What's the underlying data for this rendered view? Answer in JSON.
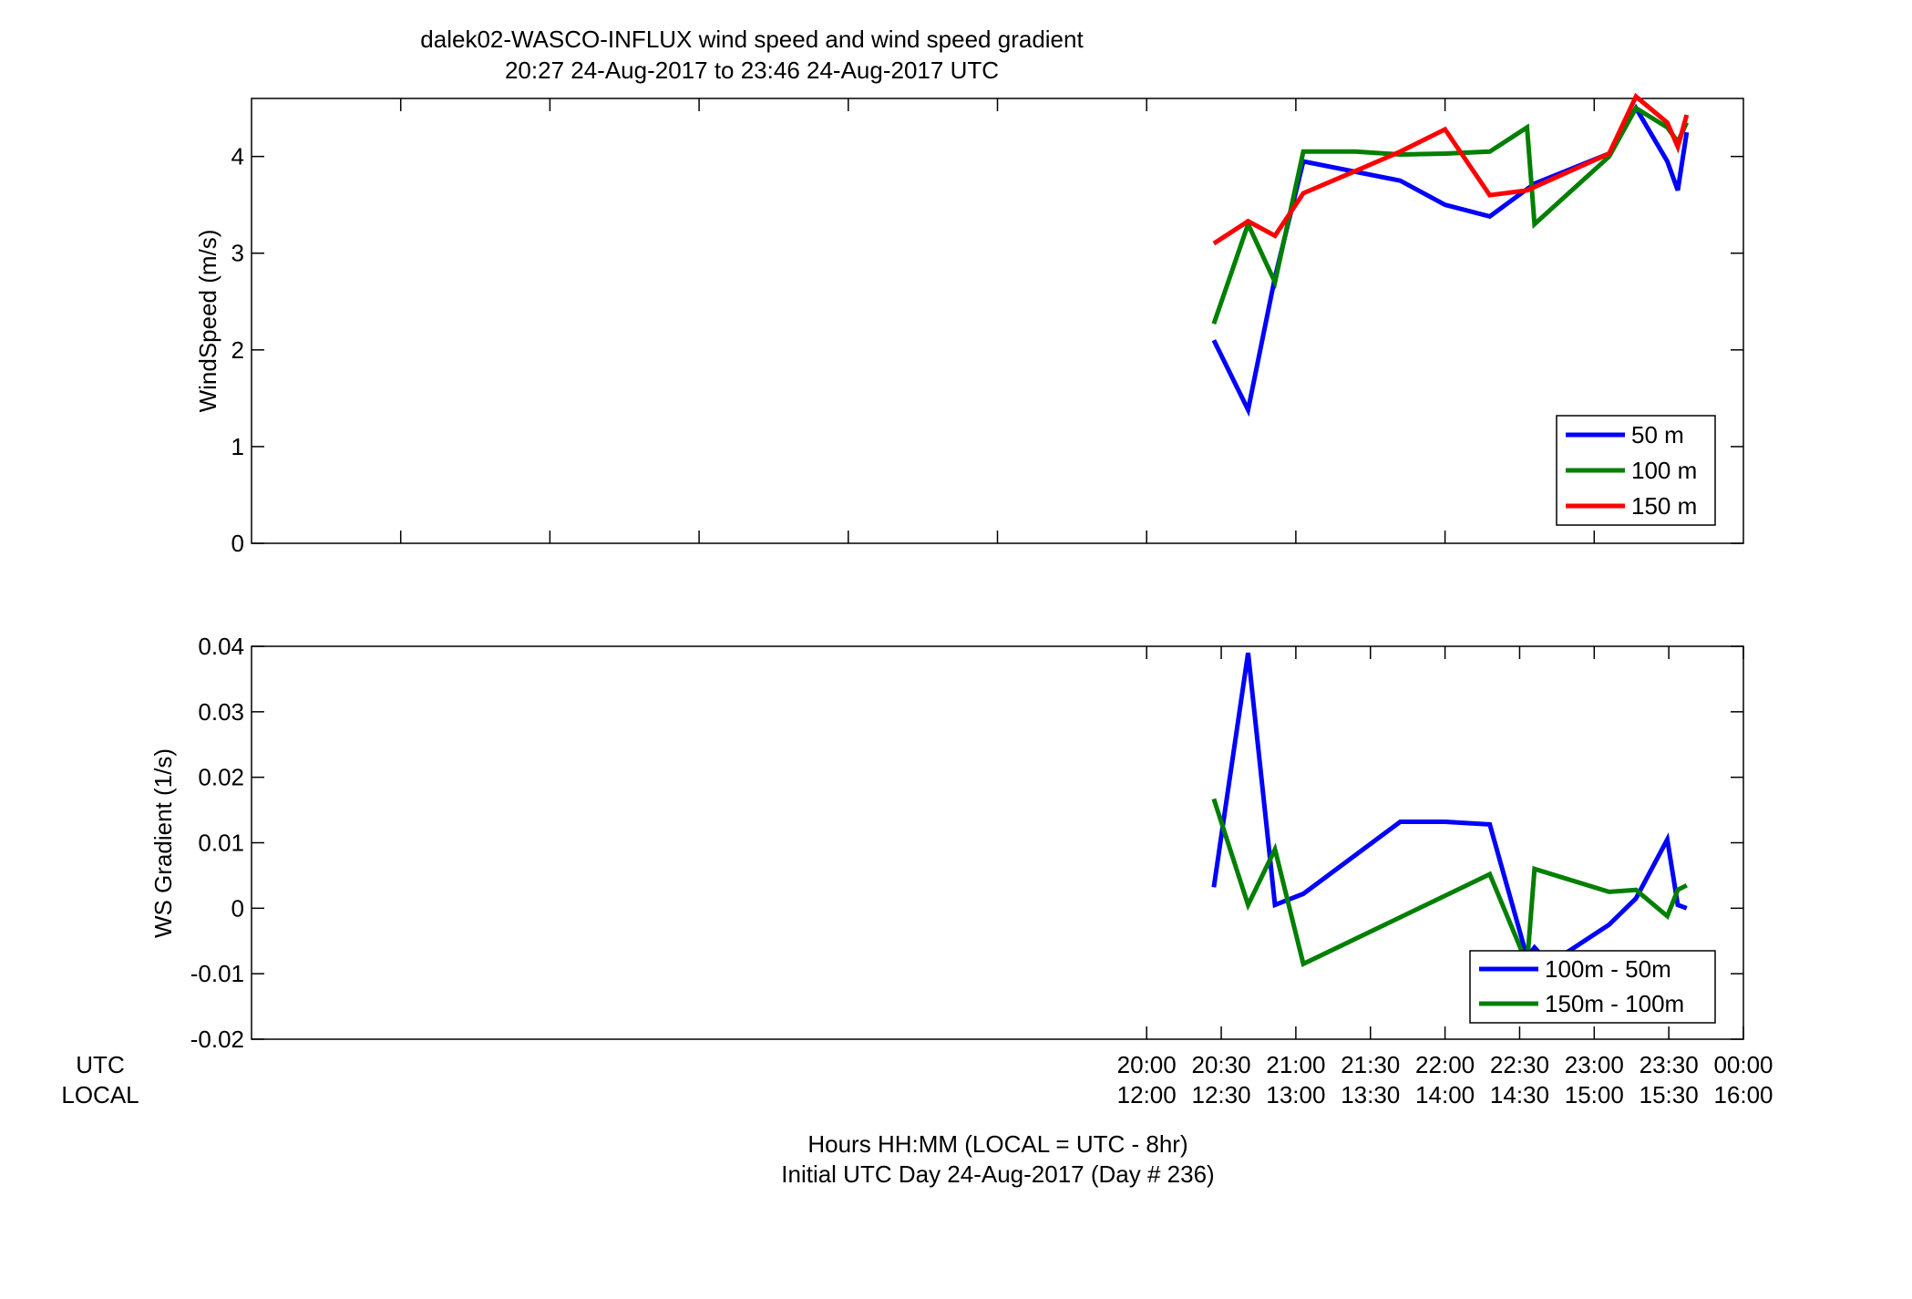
{
  "title": {
    "line1": "dalek02-WASCO-INFLUX  wind speed and wind speed gradient",
    "line2": "20:27 24-Aug-2017 to 23:46 24-Aug-2017  UTC"
  },
  "xaxis": {
    "row_label_utc": "UTC",
    "row_label_local": "LOCAL",
    "ticks_utc": [
      "20:00",
      "20:30",
      "21:00",
      "21:30",
      "22:00",
      "22:30",
      "23:00",
      "23:30",
      "00:00"
    ],
    "ticks_local": [
      "12:00",
      "12:30",
      "13:00",
      "13:30",
      "14:00",
      "14:30",
      "15:00",
      "15:30",
      "16:00"
    ],
    "label_line1": "Hours HH:MM  (LOCAL = UTC - 8hr)",
    "label_line2": "Initial UTC Day 24-Aug-2017 (Day # 236)"
  },
  "colors": {
    "blue": "#0000ff",
    "green": "#007f00",
    "red": "#ff0000"
  },
  "chart_data": [
    {
      "type": "line",
      "ylabel": "WindSpeed (m/s)",
      "ylim": [
        0,
        4.6
      ],
      "yticks": [
        0,
        1,
        2,
        3,
        4
      ],
      "ytick_labels": [
        "0",
        "1",
        "2",
        "3",
        "4"
      ],
      "x_unit": "hours UTC",
      "xlim": [
        14.0,
        24.0
      ],
      "legend": "bottom-right",
      "series": [
        {
          "name": "50 m",
          "color": "#0000ff",
          "x": [
            20.45,
            20.68,
            20.86,
            21.05,
            21.7,
            22.0,
            22.3,
            22.6,
            23.1,
            23.28,
            23.49,
            23.56,
            23.62
          ],
          "y": [
            2.1,
            1.38,
            2.75,
            3.95,
            3.75,
            3.5,
            3.38,
            3.72,
            4.03,
            4.5,
            3.95,
            3.65,
            4.25
          ]
        },
        {
          "name": "100 m",
          "color": "#007f00",
          "x": [
            20.45,
            20.68,
            20.86,
            21.05,
            21.4,
            21.7,
            22.0,
            22.3,
            22.55,
            22.6,
            23.1,
            23.28,
            23.49,
            23.56,
            23.62
          ],
          "y": [
            2.27,
            3.3,
            2.7,
            4.05,
            4.05,
            4.02,
            4.03,
            4.05,
            4.3,
            3.3,
            4.0,
            4.5,
            4.3,
            4.15,
            4.35
          ]
        },
        {
          "name": "150 m",
          "color": "#ff0000",
          "x": [
            20.45,
            20.68,
            20.86,
            21.05,
            21.4,
            21.7,
            22.0,
            22.3,
            22.55,
            23.1,
            23.28,
            23.49,
            23.56,
            23.62
          ],
          "y": [
            3.1,
            3.33,
            3.18,
            3.62,
            3.85,
            4.05,
            4.28,
            3.6,
            3.65,
            4.03,
            4.62,
            4.35,
            4.1,
            4.43
          ]
        }
      ]
    },
    {
      "type": "line",
      "ylabel": "WS Gradient (1/s)",
      "ylim": [
        -0.02,
        0.04
      ],
      "yticks": [
        -0.02,
        -0.01,
        0,
        0.01,
        0.02,
        0.03,
        0.04
      ],
      "ytick_labels": [
        "-0.02",
        "-0.01",
        "0",
        "0.01",
        "0.02",
        "0.03",
        "0.04"
      ],
      "x_unit": "hours UTC",
      "xlim": [
        14.0,
        24.0
      ],
      "legend": "bottom-right",
      "series": [
        {
          "name": "100m - 50m",
          "color": "#0000ff",
          "x": [
            20.45,
            20.68,
            20.86,
            21.05,
            21.7,
            22.0,
            22.3,
            22.55,
            22.6,
            22.7,
            23.1,
            23.28,
            23.49,
            23.56,
            23.62
          ],
          "y": [
            0.0032,
            0.039,
            0.0005,
            0.0022,
            0.0132,
            0.0132,
            0.0128,
            -0.0075,
            -0.006,
            -0.0085,
            -0.0025,
            0.0015,
            0.0105,
            0.0005,
            0.0
          ]
        },
        {
          "name": "150m - 100m",
          "color": "#007f00",
          "x": [
            20.45,
            20.68,
            20.86,
            21.05,
            22.3,
            22.55,
            22.6,
            23.1,
            23.28,
            23.49,
            23.56,
            23.62
          ],
          "y": [
            0.0167,
            0.0005,
            0.009,
            -0.0085,
            0.0052,
            -0.0085,
            0.006,
            0.0025,
            0.0028,
            -0.0012,
            0.0028,
            0.0035
          ]
        }
      ]
    }
  ]
}
